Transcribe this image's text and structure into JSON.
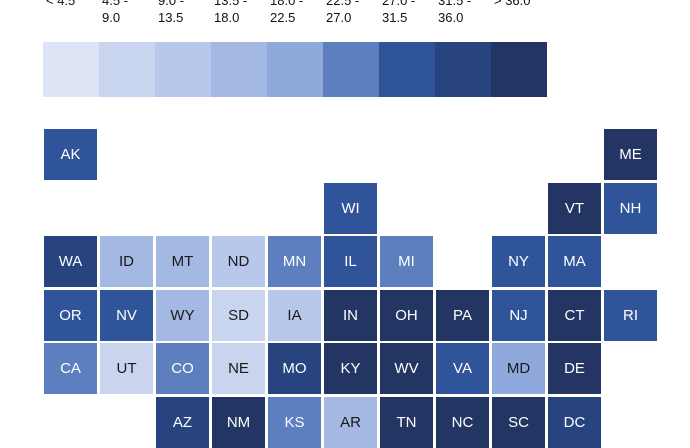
{
  "legend": {
    "bins": [
      {
        "label": "< 4.5",
        "color": "#dde4f5"
      },
      {
        "label": "4.5 -\n9.0",
        "color": "#c9d5ef"
      },
      {
        "label": "9.0 -\n13.5",
        "color": "#b7c8ea"
      },
      {
        "label": "13.5 -\n18.0",
        "color": "#a3b8e2"
      },
      {
        "label": "18.0 -\n22.5",
        "color": "#8fa9dc"
      },
      {
        "label": "22.5 -\n27.0",
        "color": "#5e7fbf"
      },
      {
        "label": "27.0 -\n31.5",
        "color": "#30549a"
      },
      {
        "label": "31.5 -\n36.0",
        "color": "#28447f"
      },
      {
        "label": "> 36.0",
        "color": "#233563"
      }
    ]
  },
  "states": [
    {
      "abbr": "AK",
      "col": 0,
      "row": 0,
      "bin": 6
    },
    {
      "abbr": "ME",
      "col": 10,
      "row": 0,
      "bin": 8
    },
    {
      "abbr": "WI",
      "col": 5,
      "row": 1,
      "bin": 6
    },
    {
      "abbr": "VT",
      "col": 9,
      "row": 1,
      "bin": 8
    },
    {
      "abbr": "NH",
      "col": 10,
      "row": 1,
      "bin": 6
    },
    {
      "abbr": "WA",
      "col": 0,
      "row": 2,
      "bin": 7
    },
    {
      "abbr": "ID",
      "col": 1,
      "row": 2,
      "bin": 3
    },
    {
      "abbr": "MT",
      "col": 2,
      "row": 2,
      "bin": 3
    },
    {
      "abbr": "ND",
      "col": 3,
      "row": 2,
      "bin": 2
    },
    {
      "abbr": "MN",
      "col": 4,
      "row": 2,
      "bin": 5
    },
    {
      "abbr": "IL",
      "col": 5,
      "row": 2,
      "bin": 6
    },
    {
      "abbr": "MI",
      "col": 6,
      "row": 2,
      "bin": 5
    },
    {
      "abbr": "NY",
      "col": 8,
      "row": 2,
      "bin": 6
    },
    {
      "abbr": "MA",
      "col": 9,
      "row": 2,
      "bin": 6
    },
    {
      "abbr": "OR",
      "col": 0,
      "row": 3,
      "bin": 6
    },
    {
      "abbr": "NV",
      "col": 1,
      "row": 3,
      "bin": 6
    },
    {
      "abbr": "WY",
      "col": 2,
      "row": 3,
      "bin": 3
    },
    {
      "abbr": "SD",
      "col": 3,
      "row": 3,
      "bin": 1
    },
    {
      "abbr": "IA",
      "col": 4,
      "row": 3,
      "bin": 2
    },
    {
      "abbr": "IN",
      "col": 5,
      "row": 3,
      "bin": 8
    },
    {
      "abbr": "OH",
      "col": 6,
      "row": 3,
      "bin": 8
    },
    {
      "abbr": "PA",
      "col": 7,
      "row": 3,
      "bin": 8
    },
    {
      "abbr": "NJ",
      "col": 8,
      "row": 3,
      "bin": 6
    },
    {
      "abbr": "CT",
      "col": 9,
      "row": 3,
      "bin": 8
    },
    {
      "abbr": "RI",
      "col": 10,
      "row": 3,
      "bin": 6
    },
    {
      "abbr": "CA",
      "col": 0,
      "row": 4,
      "bin": 5
    },
    {
      "abbr": "UT",
      "col": 1,
      "row": 4,
      "bin": 1
    },
    {
      "abbr": "CO",
      "col": 2,
      "row": 4,
      "bin": 5
    },
    {
      "abbr": "NE",
      "col": 3,
      "row": 4,
      "bin": 1
    },
    {
      "abbr": "MO",
      "col": 4,
      "row": 4,
      "bin": 7
    },
    {
      "abbr": "KY",
      "col": 5,
      "row": 4,
      "bin": 8
    },
    {
      "abbr": "WV",
      "col": 6,
      "row": 4,
      "bin": 8
    },
    {
      "abbr": "VA",
      "col": 7,
      "row": 4,
      "bin": 6
    },
    {
      "abbr": "MD",
      "col": 8,
      "row": 4,
      "bin": 4
    },
    {
      "abbr": "DE",
      "col": 9,
      "row": 4,
      "bin": 8
    },
    {
      "abbr": "AZ",
      "col": 2,
      "row": 5,
      "bin": 7
    },
    {
      "abbr": "NM",
      "col": 3,
      "row": 5,
      "bin": 8
    },
    {
      "abbr": "KS",
      "col": 4,
      "row": 5,
      "bin": 5
    },
    {
      "abbr": "AR",
      "col": 5,
      "row": 5,
      "bin": 3
    },
    {
      "abbr": "TN",
      "col": 6,
      "row": 5,
      "bin": 8
    },
    {
      "abbr": "NC",
      "col": 7,
      "row": 5,
      "bin": 8
    },
    {
      "abbr": "SC",
      "col": 8,
      "row": 5,
      "bin": 8
    },
    {
      "abbr": "DC",
      "col": 9,
      "row": 5,
      "bin": 7
    }
  ]
}
